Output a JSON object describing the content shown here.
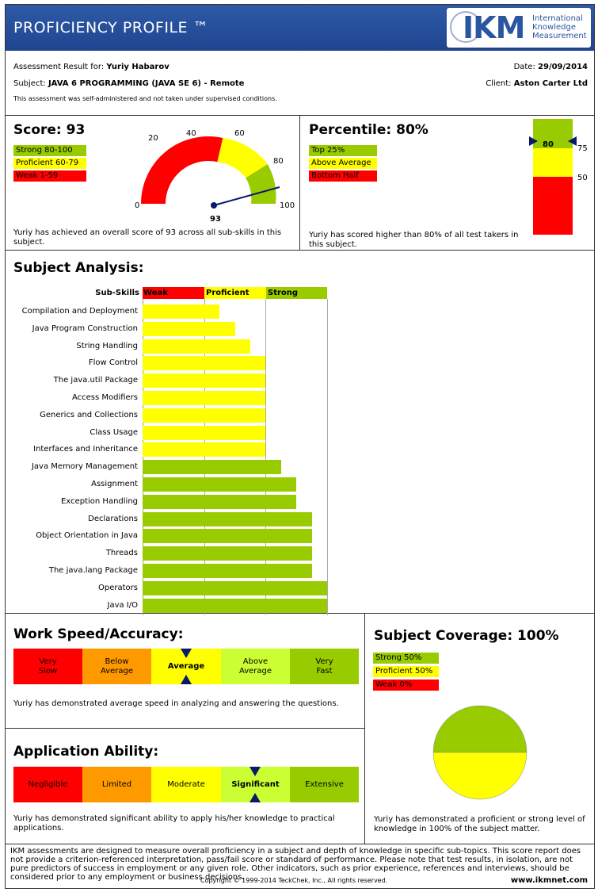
{
  "header": {
    "title": "PROFICIENCY PROFILE ™",
    "logo_mark": "IKM",
    "logo_line1": "International",
    "logo_line2": "Knowledge",
    "logo_line3": "Measurement"
  },
  "info": {
    "result_label": "Assessment Result for:",
    "candidate": "Yuriy Habarov",
    "date_label": "Date:",
    "date": "29/09/2014",
    "subject_label": "Subject:",
    "subject": "JAVA 6 PROGRAMMING (JAVA SE 6) - Remote",
    "client_label": "Client:",
    "client": "Aston Carter Ltd",
    "note": "This assessment was self-administered and not taken under supervised conditions."
  },
  "score": {
    "title": "Score: 93",
    "value": 93,
    "value_label": "93",
    "legend": [
      "Strong 80-100",
      "Proficient 60-79",
      "Weak 1-59"
    ],
    "gauge_ticks": [
      "0",
      "20",
      "40",
      "60",
      "80",
      "100"
    ],
    "text": "Yuriy has achieved an overall score of 93 across all sub-skills in this subject."
  },
  "percentile": {
    "title": "Percentile: 80%",
    "value": 80,
    "value_label": "80",
    "legend": [
      "Top 25%",
      "Above Average",
      "Bottom Half"
    ],
    "scale_labels": [
      "75",
      "50"
    ],
    "text": "Yuriy has scored higher than 80% of all test takers in this subject."
  },
  "subject_analysis": {
    "title": "Subject Analysis:",
    "col_header": "Sub-Skills",
    "bands": [
      "Weak",
      "Proficient",
      "Strong"
    ]
  },
  "chart_data": {
    "type": "bar",
    "title": "Subject Analysis:",
    "categories": [
      "Compilation and Deployment",
      "Java Program Construction",
      "String Handling",
      "Flow Control",
      "The java.util Package",
      "Access Modifiers",
      "Generics and Collections",
      "Class Usage",
      "Interfaces and Inheritance",
      "Java Memory Management",
      "Assignment",
      "Exception Handling",
      "Declarations",
      "Object Orientation in Java",
      "Threads",
      "The java.lang Package",
      "Operators",
      "Java I/O"
    ],
    "values": [
      50,
      60,
      70,
      80,
      80,
      80,
      80,
      80,
      80,
      90,
      100,
      100,
      110,
      110,
      110,
      110,
      120,
      120
    ],
    "bands": [
      {
        "name": "Weak",
        "from": 0,
        "to": 40,
        "color": "#ff0000"
      },
      {
        "name": "Proficient",
        "from": 40,
        "to": 80,
        "color": "#ffff00"
      },
      {
        "name": "Strong",
        "from": 80,
        "to": 120,
        "color": "#99cc00"
      }
    ],
    "xlim": [
      0,
      120
    ]
  },
  "speed": {
    "title": "Work Speed/Accuracy:",
    "levels": [
      "Very\nSlow",
      "Below\nAverage",
      "Average",
      "Above\nAverage",
      "Very\nFast"
    ],
    "selected": "Average",
    "text": "Yuriy has demonstrated average speed in analyzing and answering the questions."
  },
  "coverage": {
    "title": "Subject Coverage: 100%",
    "legend": [
      "Strong 50%",
      "Proficient 50%",
      "Weak 0%"
    ],
    "strong": 50,
    "proficient": 50,
    "weak": 0,
    "text": "Yuriy has demonstrated a proficient or strong level of knowledge in 100% of the subject matter."
  },
  "ability": {
    "title": "Application Ability:",
    "levels": [
      "Negligible",
      "Limited",
      "Moderate",
      "Significant",
      "Extensive"
    ],
    "selected": "Significant",
    "text": "Yuriy has demonstrated significant ability to apply his/her knowledge to practical applications."
  },
  "footer": {
    "disclaimer": "IKM assessments are designed to measure overall proficiency in a subject and depth of knowledge in specific sub-topics. This score report does not provide a criterion-referenced interpretation, pass/fail score or standard of performance. Please note that test results, in isolation, are not pure predictors of success in employment or any given role. Other indicators, such as prior experience, references and interviews, should be considered prior to any employment or business decisions.",
    "copyright": "Copyright © 1999-2014 TeckChek, Inc., All rights reserved.",
    "website": "www.ikmnet.com"
  },
  "colors": {
    "header_blue": "#2a55a0",
    "strong": "#99cc00",
    "proficient": "#ffff00",
    "weak": "#ff0000",
    "marker": "#0a1a6a"
  }
}
